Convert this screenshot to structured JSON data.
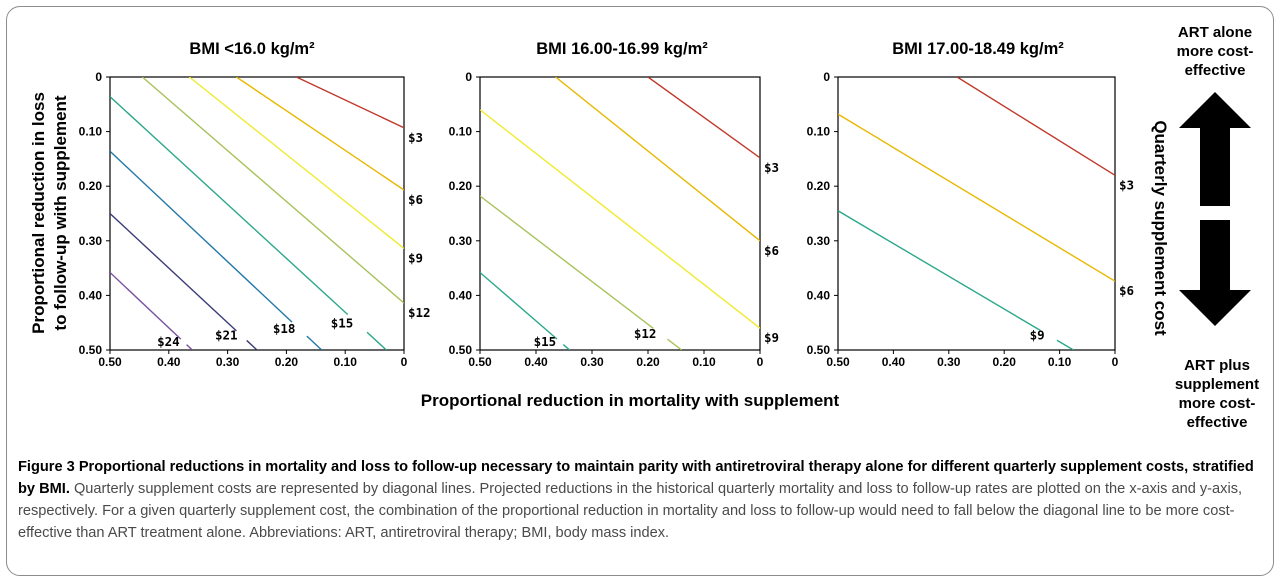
{
  "chart_data": [
    {
      "type": "contour",
      "title": "BMI <16.0 kg/m²",
      "xlabel": "Proportional reduction in mortality with supplement",
      "ylabel": "Proportional reduction in loss to follow-up with supplement",
      "contour_value_label": "Quarterly supplement cost",
      "xlim": [
        0.5,
        0
      ],
      "ylim": [
        0,
        0.5
      ],
      "x_ticks": [
        "0.50",
        "0.40",
        "0.30",
        "0.20",
        "0.10",
        "0"
      ],
      "y_ticks": [
        "0",
        "0.10",
        "0.20",
        "0.30",
        "0.40",
        "0.50"
      ],
      "lines": [
        {
          "label": "$3",
          "color": "#c0392b",
          "points": [
            [
              0.183,
              0
            ],
            [
              0,
              0.093
            ]
          ]
        },
        {
          "label": "$6",
          "color": "#e8b800",
          "points": [
            [
              0.285,
              0
            ],
            [
              0,
              0.207
            ]
          ]
        },
        {
          "label": "$9",
          "color": "#f0ea30",
          "points": [
            [
              0.365,
              0
            ],
            [
              0,
              0.314
            ]
          ]
        },
        {
          "label": "$12",
          "color": "#a8c25a",
          "points": [
            [
              0.445,
              0
            ],
            [
              0,
              0.414
            ]
          ]
        },
        {
          "label": "$15",
          "color": "#2ba88a",
          "points": [
            [
              0.5,
              0.036
            ],
            [
              0.03,
              0.5
            ]
          ]
        },
        {
          "label": "$18",
          "color": "#2378a8",
          "points": [
            [
              0.5,
              0.136
            ],
            [
              0.14,
              0.5
            ]
          ]
        },
        {
          "label": "$21",
          "color": "#3c3c78",
          "points": [
            [
              0.5,
              0.25
            ],
            [
              0.25,
              0.5
            ]
          ]
        },
        {
          "label": "$24",
          "color": "#7a52a0",
          "points": [
            [
              0.5,
              0.358
            ],
            [
              0.36,
              0.5
            ]
          ]
        }
      ]
    },
    {
      "type": "contour",
      "title": "BMI 16.00-16.99 kg/m²",
      "xlim": [
        0.5,
        0
      ],
      "ylim": [
        0,
        0.5
      ],
      "x_ticks": [
        "0.50",
        "0.40",
        "0.30",
        "0.20",
        "0.10",
        "0"
      ],
      "y_ticks": [
        "0",
        "0.10",
        "0.20",
        "0.30",
        "0.40",
        "0.50"
      ],
      "lines": [
        {
          "label": "$3",
          "color": "#c0392b",
          "points": [
            [
              0.2,
              0
            ],
            [
              0,
              0.148
            ]
          ]
        },
        {
          "label": "$6",
          "color": "#e8b800",
          "points": [
            [
              0.365,
              0
            ],
            [
              0,
              0.3
            ]
          ]
        },
        {
          "label": "$9",
          "color": "#f0ea30",
          "points": [
            [
              0.5,
              0.06
            ],
            [
              0,
              0.46
            ]
          ]
        },
        {
          "label": "$12",
          "color": "#a8c25a",
          "points": [
            [
              0.5,
              0.218
            ],
            [
              0.14,
              0.5
            ]
          ]
        },
        {
          "label": "$15",
          "color": "#2ba88a",
          "points": [
            [
              0.5,
              0.358
            ],
            [
              0.34,
              0.5
            ]
          ]
        }
      ]
    },
    {
      "type": "contour",
      "title": "BMI 17.00-18.49 kg/m²",
      "xlim": [
        0.5,
        0
      ],
      "ylim": [
        0,
        0.5
      ],
      "x_ticks": [
        "0.50",
        "0.40",
        "0.30",
        "0.20",
        "0.10",
        "0"
      ],
      "y_ticks": [
        "0",
        "0.10",
        "0.20",
        "0.30",
        "0.40",
        "0.50"
      ],
      "lines": [
        {
          "label": "$3",
          "color": "#c0392b",
          "points": [
            [
              0.285,
              0
            ],
            [
              0,
              0.18
            ]
          ]
        },
        {
          "label": "$6",
          "color": "#e8b800",
          "points": [
            [
              0.5,
              0.068
            ],
            [
              0,
              0.374
            ]
          ]
        },
        {
          "label": "$9",
          "color": "#2ba88a",
          "points": [
            [
              0.5,
              0.245
            ],
            [
              0.075,
              0.5
            ]
          ]
        }
      ]
    }
  ],
  "figure": {
    "shared_xlabel": "Proportional reduction in mortality with supplement",
    "ylabel_line1": "Proportional reduction in loss",
    "ylabel_line2": "to follow-up with supplement",
    "right_axis_label": "Quarterly supplement cost",
    "top_note": [
      "ART alone",
      "more cost-",
      "effective"
    ],
    "bottom_note": [
      "ART plus",
      "supplement",
      "more cost-",
      "effective"
    ]
  },
  "caption": {
    "title": "Figure 3 Proportional reductions in mortality and loss to follow-up necessary to maintain parity with antiretroviral therapy alone for different quarterly supplement costs, stratified by BMI.",
    "body": "Quarterly supplement costs are represented by diagonal lines. Projected reductions in the historical quarterly mortality and loss to follow-up rates are plotted on the x-axis and y-axis, respectively. For a given quarterly supplement cost, the combination of the proportional reduction in mortality and loss to follow-up would need to fall below the diagonal line to be more cost-effective than ART treatment alone. Abbreviations: ART, antiretroviral therapy; BMI, body mass index."
  }
}
